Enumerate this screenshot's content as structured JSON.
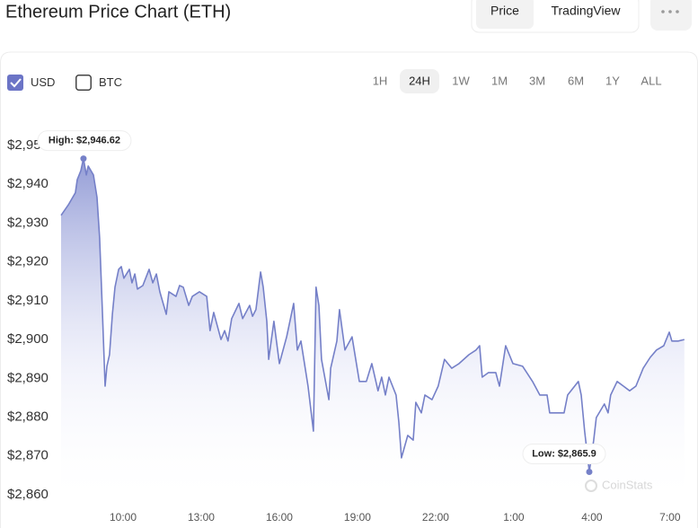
{
  "header": {
    "title": "Ethereum Price Chart (ETH)",
    "tabs": [
      {
        "label": "Price",
        "active": true
      },
      {
        "label": "TradingView",
        "active": false
      }
    ]
  },
  "controls": {
    "currencies": [
      {
        "label": "USD",
        "checked": true
      },
      {
        "label": "BTC",
        "checked": false
      }
    ],
    "ranges": [
      {
        "label": "1H",
        "active": false
      },
      {
        "label": "24H",
        "active": true
      },
      {
        "label": "1W",
        "active": false
      },
      {
        "label": "1M",
        "active": false
      },
      {
        "label": "3M",
        "active": false
      },
      {
        "label": "6M",
        "active": false
      },
      {
        "label": "1Y",
        "active": false
      },
      {
        "label": "ALL",
        "active": false
      }
    ]
  },
  "chart_data": {
    "type": "area",
    "color": "#7580c8",
    "x": [
      7.62,
      7.9,
      8.17,
      8.24,
      8.38,
      8.48,
      8.59,
      8.66,
      8.86,
      9.0,
      9.1,
      9.21,
      9.31,
      9.38,
      9.48,
      9.59,
      9.69,
      9.83,
      9.93,
      10.03,
      10.24,
      10.34,
      10.45,
      10.55,
      10.76,
      11.0,
      11.14,
      11.28,
      11.41,
      11.66,
      11.76,
      12.03,
      12.17,
      12.31,
      12.52,
      12.66,
      12.93,
      13.21,
      13.34,
      13.48,
      13.76,
      13.9,
      14.03,
      14.17,
      14.45,
      14.59,
      14.86,
      14.97,
      15.1,
      15.28,
      15.38,
      15.52,
      15.59,
      15.79,
      16.0,
      16.28,
      16.55,
      16.69,
      16.83,
      17.1,
      17.31,
      17.41,
      17.52,
      17.62,
      17.9,
      17.97,
      18.21,
      18.31,
      18.52,
      18.79,
      19.07,
      19.34,
      19.55,
      19.79,
      19.93,
      20.07,
      20.21,
      20.48,
      20.59,
      20.69,
      20.93,
      21.14,
      21.24,
      21.45,
      21.59,
      21.86,
      22.1,
      22.34,
      22.62,
      22.9,
      23.28,
      23.55,
      23.69,
      23.79,
      24.03,
      24.31,
      24.45,
      24.69,
      24.97,
      25.34,
      25.72,
      26.0,
      26.28,
      26.38,
      26.66,
      26.93,
      27.07,
      27.34,
      27.48,
      27.59,
      27.72,
      27.9,
      28.07,
      28.17,
      28.48,
      28.62,
      28.72,
      28.97,
      29.21,
      29.45,
      29.69,
      29.97,
      30.24,
      30.48,
      30.76,
      30.97,
      31.07,
      31.31,
      31.55
    ],
    "values": [
      2932.0,
      2934.7,
      2937.8,
      2941.2,
      2943.5,
      2946.62,
      2942.4,
      2944.7,
      2942.4,
      2936.6,
      2926.2,
      2906.5,
      2888.0,
      2893.1,
      2896.1,
      2906.5,
      2913.5,
      2918.1,
      2918.8,
      2915.8,
      2918.1,
      2914.6,
      2916.9,
      2913.0,
      2913.9,
      2918.1,
      2914.6,
      2916.9,
      2912.3,
      2906.5,
      2912.3,
      2911.1,
      2913.9,
      2913.5,
      2908.8,
      2911.1,
      2912.3,
      2911.1,
      2902.3,
      2907.0,
      2900.0,
      2902.3,
      2899.6,
      2905.4,
      2909.3,
      2905.4,
      2908.8,
      2906.0,
      2907.7,
      2917.4,
      2913.5,
      2904.7,
      2894.9,
      2904.7,
      2893.8,
      2900.7,
      2909.3,
      2897.3,
      2899.6,
      2888.0,
      2876.4,
      2913.5,
      2908.8,
      2894.9,
      2884.5,
      2892.6,
      2899.6,
      2907.7,
      2897.3,
      2900.7,
      2889.2,
      2889.2,
      2893.8,
      2886.8,
      2890.3,
      2885.7,
      2890.3,
      2885.7,
      2878.7,
      2869.5,
      2875.3,
      2874.1,
      2883.8,
      2881.1,
      2885.7,
      2884.5,
      2888.0,
      2894.9,
      2892.6,
      2893.8,
      2896.1,
      2897.3,
      2898.4,
      2890.3,
      2891.5,
      2891.5,
      2888.0,
      2898.4,
      2893.8,
      2893.1,
      2889.2,
      2885.7,
      2885.7,
      2881.1,
      2881.1,
      2881.1,
      2885.7,
      2888.0,
      2889.2,
      2885.7,
      2876.4,
      2865.9,
      2874.1,
      2879.9,
      2883.4,
      2881.1,
      2885.7,
      2889.2,
      2888.0,
      2886.8,
      2888.0,
      2892.6,
      2895.4,
      2897.3,
      2898.4,
      2901.9,
      2899.6,
      2899.6,
      2900.0
    ],
    "xlim": [
      7.62,
      31.66
    ],
    "ylim": [
      2860,
      2950
    ],
    "xticks": [
      {
        "value": 10,
        "label": "10:00"
      },
      {
        "value": 13,
        "label": "13:00"
      },
      {
        "value": 16,
        "label": "16:00"
      },
      {
        "value": 19,
        "label": "19:00"
      },
      {
        "value": 22,
        "label": "22:00"
      },
      {
        "value": 25,
        "label": "1:00"
      },
      {
        "value": 28,
        "label": "4:00"
      },
      {
        "value": 31,
        "label": "7:00"
      }
    ],
    "yticks": [
      {
        "value": 2860,
        "label": "$2,860"
      },
      {
        "value": 2870,
        "label": "$2,870"
      },
      {
        "value": 2880,
        "label": "$2,880"
      },
      {
        "value": 2890,
        "label": "$2,890"
      },
      {
        "value": 2900,
        "label": "$2,900"
      },
      {
        "value": 2910,
        "label": "$2,910"
      },
      {
        "value": 2920,
        "label": "$2,920"
      },
      {
        "value": 2930,
        "label": "$2,930"
      },
      {
        "value": 2940,
        "label": "$2,940"
      },
      {
        "value": 2950,
        "label": "$2,950"
      }
    ],
    "grid": false,
    "annotations": [
      {
        "text": "High: $2,946.62",
        "index": 5
      },
      {
        "text": "Low: $2,865.9",
        "index": 111
      }
    ],
    "watermark": "CoinStats"
  }
}
